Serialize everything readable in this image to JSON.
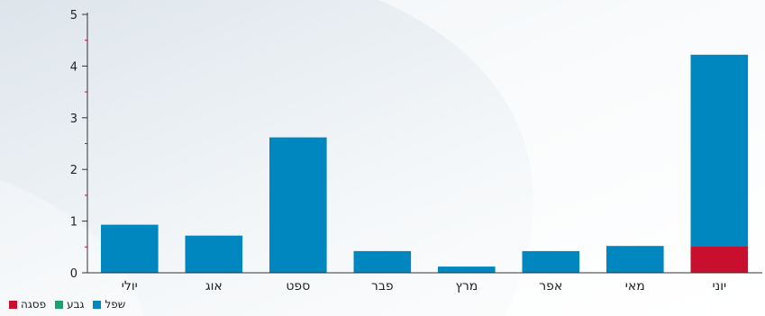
{
  "chart_data": {
    "type": "bar",
    "stacked": true,
    "categories": [
      "יולי",
      "אוג",
      "ספט",
      "פבר",
      "מרץ",
      "אפר",
      "מאי",
      "יוני"
    ],
    "series": [
      {
        "name": "פסגה",
        "color": "#c8102e",
        "values": [
          0,
          0,
          0,
          0,
          0,
          0,
          0,
          0.52
        ]
      },
      {
        "name": "גבע",
        "color": "#1aa46c",
        "values": [
          0,
          0,
          0,
          0,
          0,
          0,
          0,
          0
        ]
      },
      {
        "name": "שפל",
        "color": "#0087c0",
        "values": [
          0.93,
          0.72,
          2.62,
          0.42,
          0.12,
          0.42,
          0.52,
          3.7
        ]
      }
    ],
    "yticks": [
      0,
      1,
      2,
      3,
      4,
      5
    ],
    "ylim": [
      0,
      5
    ],
    "grid": false,
    "legend_position": "bottom-left"
  }
}
